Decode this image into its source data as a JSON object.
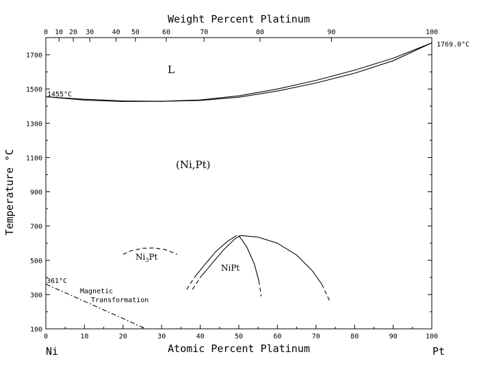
{
  "chart_data": {
    "type": "line",
    "top_axis_title": "Weight Percent Platinum",
    "bottom_axis_title": "Atomic Percent Platinum",
    "ylabel": "Temperature °C",
    "xlim": [
      0,
      100
    ],
    "ylim": [
      100,
      1800
    ],
    "bottom_ticks": [
      0,
      10,
      20,
      30,
      40,
      50,
      60,
      70,
      80,
      90,
      100
    ],
    "y_ticks": [
      100,
      300,
      500,
      700,
      900,
      1100,
      1300,
      1500,
      1700
    ],
    "top_ticks": [
      {
        "label": "0",
        "at_pct": 0
      },
      {
        "label": "10",
        "at_pct": 3.4
      },
      {
        "label": "20",
        "at_pct": 7.1
      },
      {
        "label": "30",
        "at_pct": 11.4
      },
      {
        "label": "40",
        "at_pct": 18.2
      },
      {
        "label": "50",
        "at_pct": 23.2
      },
      {
        "label": "60",
        "at_pct": 31.2
      },
      {
        "label": "70",
        "at_pct": 41.0
      },
      {
        "label": "80",
        "at_pct": 55.5
      },
      {
        "label": "90",
        "at_pct": 74.0
      },
      {
        "label": "100",
        "at_pct": 100
      }
    ],
    "element_left": "Ni",
    "element_right": "Pt",
    "labels": {
      "liquid": "L",
      "solid_solution": "(Ni,Pt)",
      "ni3pt_main": "Ni",
      "ni3pt_sub": "3",
      "ni3pt_tail": "Pt",
      "nipt": "NiPt",
      "ni_melting": "1455°C",
      "pt_melting": "1769.0°C",
      "curie": "361°C",
      "magnetic_line1": "Magnetic",
      "magnetic_line2": "Transformation"
    },
    "series": [
      {
        "key": "liquidus",
        "style": "solid",
        "points": [
          [
            0,
            1455
          ],
          [
            10,
            1440
          ],
          [
            20,
            1430
          ],
          [
            30,
            1428
          ],
          [
            40,
            1436
          ],
          [
            50,
            1460
          ],
          [
            60,
            1500
          ],
          [
            70,
            1550
          ],
          [
            80,
            1610
          ],
          [
            90,
            1680
          ],
          [
            100,
            1769
          ]
        ]
      },
      {
        "key": "solidus",
        "style": "solid",
        "points": [
          [
            0,
            1455
          ],
          [
            10,
            1435
          ],
          [
            20,
            1427
          ],
          [
            30,
            1428
          ],
          [
            40,
            1433
          ],
          [
            50,
            1452
          ],
          [
            60,
            1488
          ],
          [
            70,
            1535
          ],
          [
            80,
            1592
          ],
          [
            90,
            1665
          ],
          [
            100,
            1769
          ]
        ]
      },
      {
        "key": "ni3pt-dome",
        "style": "dashed",
        "points": [
          [
            20,
            535
          ],
          [
            22,
            555
          ],
          [
            25,
            570
          ],
          [
            28,
            572
          ],
          [
            31,
            562
          ],
          [
            34,
            535
          ]
        ]
      },
      {
        "key": "nipt-outer-left",
        "style": "solid",
        "points": [
          [
            38.5,
            400
          ],
          [
            41,
            470
          ],
          [
            44,
            550
          ],
          [
            47,
            610
          ],
          [
            49.5,
            645
          ]
        ]
      },
      {
        "key": "nipt-outer-left-tail",
        "style": "dashed",
        "points": [
          [
            36.5,
            330
          ],
          [
            38.5,
            400
          ]
        ]
      },
      {
        "key": "nipt-outer-right",
        "style": "solid",
        "points": [
          [
            50.5,
            645
          ],
          [
            55,
            635
          ],
          [
            60,
            600
          ],
          [
            65,
            530
          ],
          [
            69,
            440
          ],
          [
            71.5,
            360
          ]
        ]
      },
      {
        "key": "nipt-outer-right-tail",
        "style": "dashed",
        "points": [
          [
            71.5,
            360
          ],
          [
            73.5,
            265
          ]
        ]
      },
      {
        "key": "nipt-inner-left",
        "style": "solid",
        "points": [
          [
            40,
            400
          ],
          [
            43,
            480
          ],
          [
            46,
            560
          ],
          [
            49,
            625
          ],
          [
            50.5,
            645
          ]
        ]
      },
      {
        "key": "nipt-inner-left-tail",
        "style": "dashed",
        "points": [
          [
            38,
            330
          ],
          [
            40,
            400
          ]
        ]
      },
      {
        "key": "nipt-inner-right",
        "style": "solid",
        "points": [
          [
            50,
            645
          ],
          [
            52,
            580
          ],
          [
            54,
            480
          ],
          [
            55.2,
            380
          ]
        ]
      },
      {
        "key": "nipt-inner-right-tail",
        "style": "dashed",
        "points": [
          [
            55.2,
            380
          ],
          [
            55.8,
            290
          ]
        ]
      },
      {
        "key": "magnetic",
        "style": "dashdot",
        "points": [
          [
            0,
            361
          ],
          [
            26,
            100
          ]
        ]
      }
    ]
  }
}
